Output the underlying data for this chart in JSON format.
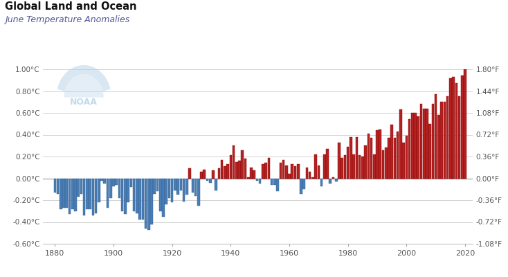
{
  "title": "Global Land and Ocean",
  "subtitle": "June Temperature Anomalies",
  "years": [
    1880,
    1881,
    1882,
    1883,
    1884,
    1885,
    1886,
    1887,
    1888,
    1889,
    1890,
    1891,
    1892,
    1893,
    1894,
    1895,
    1896,
    1897,
    1898,
    1899,
    1900,
    1901,
    1902,
    1903,
    1904,
    1905,
    1906,
    1907,
    1908,
    1909,
    1910,
    1911,
    1912,
    1913,
    1914,
    1915,
    1916,
    1917,
    1918,
    1919,
    1920,
    1921,
    1922,
    1923,
    1924,
    1925,
    1926,
    1927,
    1928,
    1929,
    1930,
    1931,
    1932,
    1933,
    1934,
    1935,
    1936,
    1937,
    1938,
    1939,
    1940,
    1941,
    1942,
    1943,
    1944,
    1945,
    1946,
    1947,
    1948,
    1949,
    1950,
    1951,
    1952,
    1953,
    1954,
    1955,
    1956,
    1957,
    1958,
    1959,
    1960,
    1961,
    1962,
    1963,
    1964,
    1965,
    1966,
    1967,
    1968,
    1969,
    1970,
    1971,
    1972,
    1973,
    1974,
    1975,
    1976,
    1977,
    1978,
    1979,
    1980,
    1981,
    1982,
    1983,
    1984,
    1985,
    1986,
    1987,
    1988,
    1989,
    1990,
    1991,
    1992,
    1993,
    1994,
    1995,
    1996,
    1997,
    1998,
    1999,
    2000,
    2001,
    2002,
    2003,
    2004,
    2005,
    2006,
    2007,
    2008,
    2009,
    2010,
    2011,
    2012,
    2013,
    2014,
    2015,
    2016,
    2017,
    2018,
    2019,
    2020
  ],
  "anomalies": [
    -0.13,
    -0.14,
    -0.28,
    -0.27,
    -0.27,
    -0.33,
    -0.28,
    -0.3,
    -0.17,
    -0.14,
    -0.34,
    -0.28,
    -0.28,
    -0.34,
    -0.32,
    -0.22,
    -0.02,
    -0.05,
    -0.27,
    -0.18,
    -0.07,
    -0.06,
    -0.18,
    -0.3,
    -0.33,
    -0.22,
    -0.08,
    -0.3,
    -0.32,
    -0.38,
    -0.38,
    -0.46,
    -0.47,
    -0.42,
    -0.14,
    -0.12,
    -0.3,
    -0.35,
    -0.24,
    -0.18,
    -0.22,
    -0.11,
    -0.15,
    -0.11,
    -0.21,
    -0.15,
    0.09,
    -0.13,
    -0.16,
    -0.25,
    0.06,
    0.08,
    -0.02,
    -0.04,
    0.07,
    -0.11,
    0.09,
    0.17,
    0.11,
    0.13,
    0.21,
    0.3,
    0.15,
    0.16,
    0.26,
    0.18,
    0.01,
    0.1,
    0.07,
    -0.02,
    -0.05,
    0.13,
    0.14,
    0.19,
    -0.06,
    -0.06,
    -0.12,
    0.14,
    0.17,
    0.12,
    0.04,
    0.13,
    0.11,
    0.13,
    -0.14,
    -0.1,
    0.1,
    0.06,
    0.01,
    0.22,
    0.12,
    -0.07,
    0.22,
    0.27,
    -0.05,
    0.01,
    -0.03,
    0.33,
    0.19,
    0.21,
    0.29,
    0.38,
    0.22,
    0.38,
    0.21,
    0.2,
    0.3,
    0.41,
    0.37,
    0.22,
    0.44,
    0.45,
    0.26,
    0.28,
    0.37,
    0.49,
    0.37,
    0.43,
    0.63,
    0.33,
    0.39,
    0.54,
    0.6,
    0.6,
    0.57,
    0.68,
    0.64,
    0.64,
    0.5,
    0.68,
    0.77,
    0.58,
    0.7,
    0.7,
    0.75,
    0.92,
    0.93,
    0.87,
    0.75,
    0.94,
    1.0
  ],
  "ylim_celsius": [
    -0.6,
    1.0
  ],
  "yticks_celsius": [
    -0.6,
    -0.4,
    -0.2,
    0.0,
    0.2,
    0.4,
    0.6,
    0.8,
    1.0
  ],
  "yticks_fahrenheit": [
    -1.08,
    -0.72,
    -0.36,
    0.0,
    0.36,
    0.72,
    1.08,
    1.44,
    1.8
  ],
  "xticks": [
    1880,
    1900,
    1920,
    1940,
    1960,
    1980,
    2000,
    2020
  ],
  "bar_color_positive": "#b22222",
  "bar_color_negative": "#4a7db5",
  "bar_edge_positive": "#8b0000",
  "bar_edge_negative": "#2e5f8a",
  "background_color": "#ffffff",
  "grid_color": "#cccccc",
  "title_color": "#111111",
  "subtitle_color": "#555599",
  "axis_label_color": "#555555",
  "zero_line_color": "#888888",
  "noaa_logo_color": "#b8d4e8"
}
